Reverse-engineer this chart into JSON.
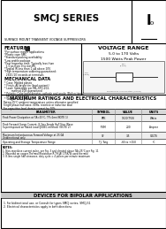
{
  "title": "SMCJ SERIES",
  "subtitle": "SURFACE MOUNT TRANSIENT VOLTAGE SUPPRESSORS",
  "voltage_range_title": "VOLTAGE RANGE",
  "voltage_range": "5.0 to 170 Volts",
  "power": "1500 Watts Peak Power",
  "features_title": "FEATURES",
  "features": [
    "*For surface mount applications",
    "*Plastic case SMC",
    "*Standard packing availability",
    "*Low profile package",
    "*Fast response time: Typically less than",
    "  1.0 ps from 0 to min BV",
    "*Typical IR less than 1 uA above 10V",
    "*High temperature soldering guaranteed:",
    "  260C/10 seconds at terminals"
  ],
  "mech_title": "MECHANICAL DATA",
  "mech": [
    "* Case: Molded plastic",
    "* Finish: All bright tin (lead content)",
    "* Lead: Solderable per MIL-STD-202,",
    "         method 208 guaranteed",
    "* Polarity: Color band denotes cathode and anode (Bidirectional",
    "  has no color band)",
    "* Weight: 0.12 grams"
  ],
  "max_title": "MAXIMUM RATINGS AND ELECTRICAL CHARACTERISTICS",
  "max_note1": "Rating 25°C ambient temperature unless otherwise specified",
  "max_note2": "Single phase half wave, 60Hz, resistive or inductive load",
  "max_note3": "For capacitive load, derate current by 20%",
  "table_headers": [
    "PARAMETER",
    "SYMBOL",
    "VALUE",
    "UNITS"
  ],
  "table_rows": [
    [
      "Peak Power Dissipation at TA=25°C, TP=1ms(NOTE 1)",
      "PPK",
      "1500(TVS)",
      "Watts"
    ],
    [
      "Peak Forward Surge Current, 8.3ms Single Half Sine Wave\nSuperimposed on Rated Load (JEDEC method) (NOTE 2)",
      "IFSM",
      "200",
      "Ampere"
    ],
    [
      "Maximum Instantaneous Forward Voltage at 25.0A\nUnidirectional only",
      "VF",
      "3.5",
      "VOLTS"
    ],
    [
      "Operating and Storage Temperature Range",
      "TJ, Tstg",
      "-65 to +150",
      "°C"
    ]
  ],
  "notes_title": "NOTES:",
  "notes": [
    "1. Non-repetitive current pulse, per Fig. 3 and derated above TA=25°C per Fig. 11",
    "2. Mounted on copper.Thermal Resistance(R TH JA) 175K/W used thermal",
    "3. 8.3ms single half sinewave, duty cycle = 4 pulses per minute maximum"
  ],
  "bipolar_title": "DEVICES FOR BIPOLAR APPLICATIONS",
  "bipolar": [
    "1. For bidirectional use, or Consult for types SMCJ series, SMCJ-51",
    "2. Electrical characteristics apply in both directions"
  ],
  "bg_color": "#ffffff",
  "border_color": "#000000",
  "text_color": "#000000"
}
